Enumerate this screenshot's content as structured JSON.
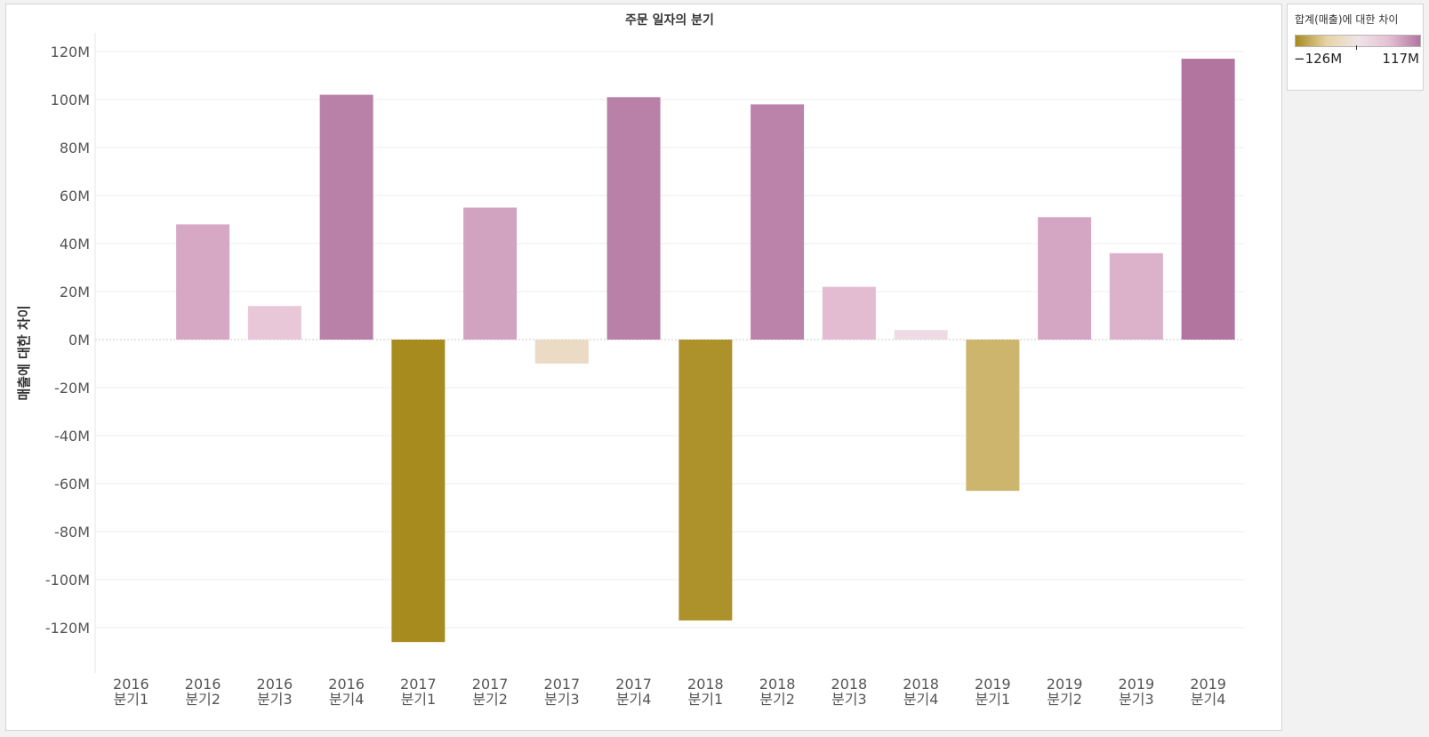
{
  "chart_data": {
    "type": "bar",
    "title": "주문 일자의 분기",
    "xlabel": "",
    "ylabel": "매출에 대한 차이",
    "ylim": [
      -140,
      130
    ],
    "yticks": [
      120,
      100,
      80,
      60,
      40,
      20,
      0,
      -20,
      -40,
      -60,
      -80,
      -100,
      -120
    ],
    "ytick_labels": [
      "120M",
      "100M",
      "80M",
      "60M",
      "40M",
      "20M",
      "0M",
      "-20M",
      "-40M",
      "-60M",
      "-80M",
      "-100M",
      "-120M"
    ],
    "value_unit": "M",
    "grid": true,
    "categories": [
      {
        "year": "2016",
        "quarter": "분기1"
      },
      {
        "year": "2016",
        "quarter": "분기2"
      },
      {
        "year": "2016",
        "quarter": "분기3"
      },
      {
        "year": "2016",
        "quarter": "분기4"
      },
      {
        "year": "2017",
        "quarter": "분기1"
      },
      {
        "year": "2017",
        "quarter": "분기2"
      },
      {
        "year": "2017",
        "quarter": "분기3"
      },
      {
        "year": "2017",
        "quarter": "분기4"
      },
      {
        "year": "2018",
        "quarter": "분기1"
      },
      {
        "year": "2018",
        "quarter": "분기2"
      },
      {
        "year": "2018",
        "quarter": "분기3"
      },
      {
        "year": "2018",
        "quarter": "분기4"
      },
      {
        "year": "2019",
        "quarter": "분기1"
      },
      {
        "year": "2019",
        "quarter": "분기2"
      },
      {
        "year": "2019",
        "quarter": "분기3"
      },
      {
        "year": "2019",
        "quarter": "분기4"
      }
    ],
    "values": [
      null,
      48,
      14,
      102,
      -126,
      55,
      -10,
      101,
      -117,
      98,
      22,
      4,
      -63,
      51,
      36,
      117
    ],
    "color_legend": {
      "title": "합계(매출)에 대한 차이",
      "min_label": "−126M",
      "max_label": "117M",
      "min": -126,
      "max": 117,
      "colors": {
        "negative_strong": "#a88b1f",
        "negative_light": "#e8d3a4",
        "neutral": "#efe5e8",
        "positive_light": "#e6bfd4",
        "positive_strong": "#b175a0"
      }
    }
  }
}
